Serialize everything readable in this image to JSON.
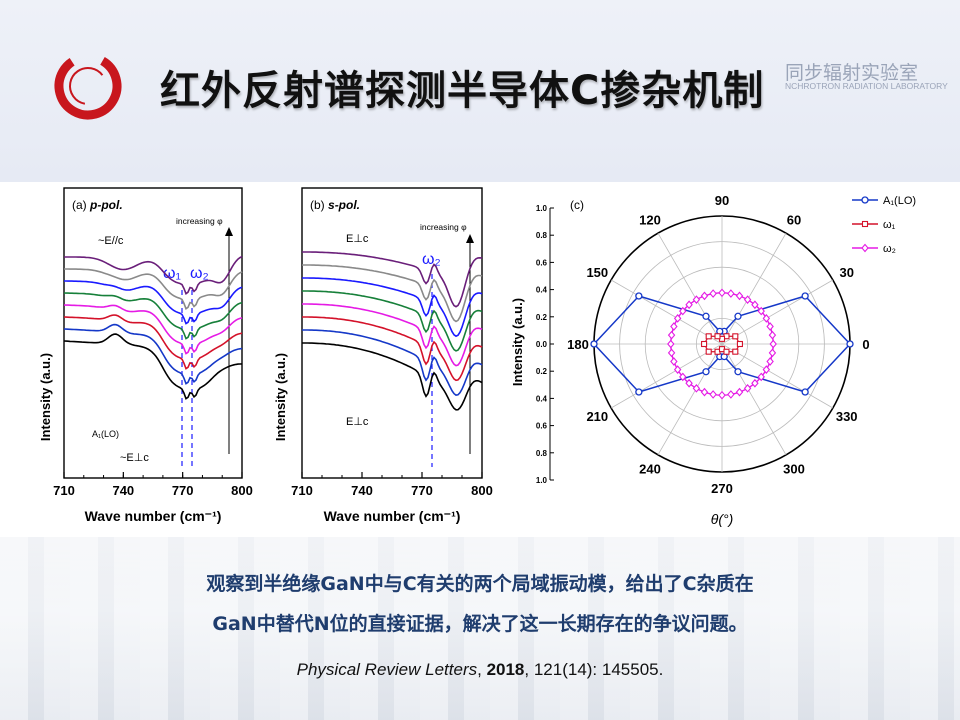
{
  "slide": {
    "title": "红外反射谱探测半导体C掺杂机制",
    "lab_name_cn": "同步辐射实验室",
    "lab_name_en": "NCHROTRON RADIATION LABORATORY",
    "conclusion_line1": "观察到半绝缘GaN中与C有关的两个局域振动模，给出了C杂质在",
    "conclusion_line2": "GaN中替代N位的直接证据，解决了这一长期存在的争议问题。",
    "citation": {
      "journal": "Physical Review Letters",
      "year": "2018",
      "rest": ", 121(14):  145505."
    }
  },
  "colors": {
    "logo_red": "#c8161d",
    "curves": [
      "#6a1f7a",
      "#8a8a8a",
      "#1a1aff",
      "#17803a",
      "#e51be5",
      "#d4122a",
      "#1538c8",
      "#000000"
    ]
  },
  "chart_data": [
    {
      "type": "line",
      "panel_label": "(a)",
      "panel_pol": "p-pol.",
      "xlabel": "Wave number (cm⁻¹)",
      "ylabel": "Intensity (a.u.)",
      "xlim": [
        710,
        800
      ],
      "x_ticks": [
        "710",
        "740",
        "770",
        "800"
      ],
      "annotations": {
        "top": "~E//c",
        "bottom": "~E⊥c",
        "mode": "A₁(LO)",
        "increasing": "increasing φ",
        "w1": "ω₁",
        "w2": "ω₂"
      }
    },
    {
      "type": "line",
      "panel_label": "(b)",
      "panel_pol": "s-pol.",
      "xlabel": "Wave number (cm⁻¹)",
      "ylabel": "Intensity (a.u.)",
      "xlim": [
        710,
        800
      ],
      "x_ticks": [
        "710",
        "740",
        "770",
        "800"
      ],
      "annotations": {
        "top": "E⊥c",
        "bottom": "E⊥c",
        "increasing": "increasing φ",
        "w2": "ω₂"
      }
    },
    {
      "type": "scatter",
      "panel_label": "(c)",
      "polar": true,
      "ylabel": "Intensity (a.u.)",
      "xlabel": "θ(°)",
      "radial_ticks": [
        "1.0",
        "0.8",
        "0.6",
        "0.4",
        "0.2",
        "0.0",
        "0.2",
        "0.4",
        "0.6",
        "0.8",
        "1.0"
      ],
      "angle_ticks": [
        "0",
        "30",
        "60",
        "90",
        "120",
        "150",
        "180",
        "210",
        "240",
        "270",
        "300",
        "330"
      ],
      "legend": [
        "A₁(LO)",
        "ω₁",
        "ω₂"
      ],
      "legend_position": "top-right",
      "series": [
        {
          "name": "A₁(LO)",
          "theta": [
            0,
            30,
            60,
            80,
            100,
            120,
            150,
            180,
            210,
            240,
            260,
            280,
            300,
            330
          ],
          "r": [
            1.0,
            0.75,
            0.25,
            0.1,
            0.1,
            0.25,
            0.75,
            1.0,
            0.75,
            0.25,
            0.1,
            0.1,
            0.25,
            0.75
          ]
        },
        {
          "name": "ω₁",
          "theta": [
            0,
            30,
            60,
            90,
            120,
            150,
            180,
            210,
            240,
            270,
            300,
            330
          ],
          "r": [
            0.14,
            0.12,
            0.07,
            0.04,
            0.07,
            0.12,
            0.14,
            0.12,
            0.07,
            0.04,
            0.07,
            0.12
          ]
        },
        {
          "name": "ω₂",
          "r_constant": 0.4
        }
      ]
    }
  ]
}
